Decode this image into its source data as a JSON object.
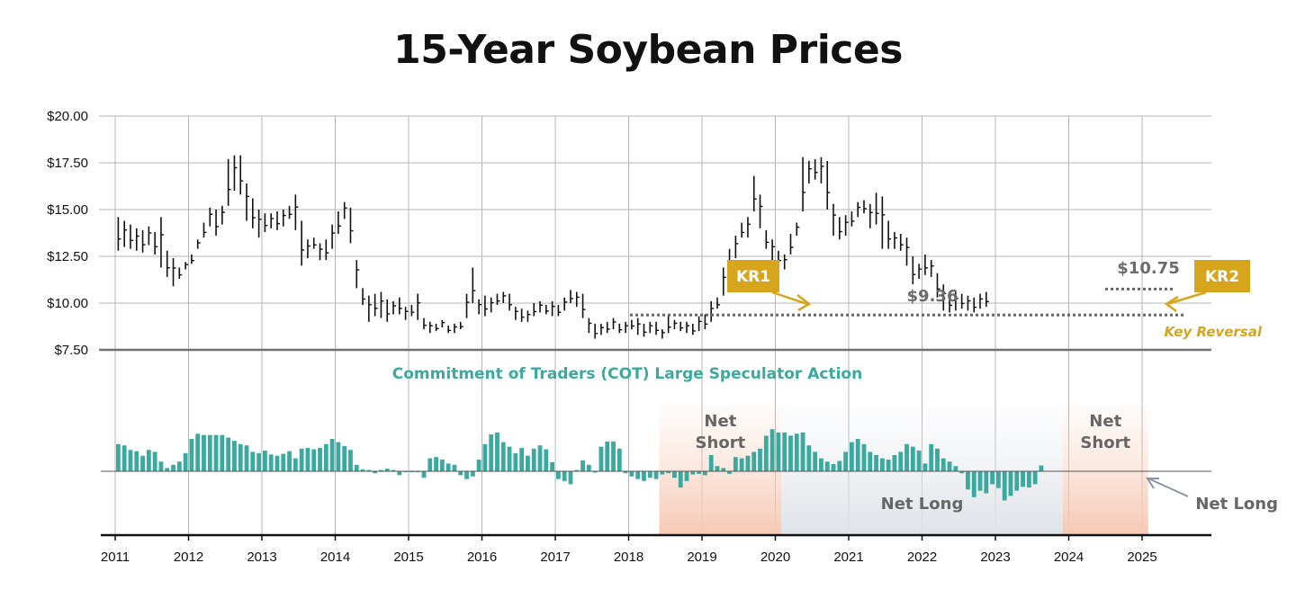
{
  "title": "15-Year Soybean Prices",
  "colors": {
    "bar": "#111111",
    "cot": "#3aa99f",
    "short_zone": "#f6c9b5",
    "long_zone": "#dfe3e8",
    "accent": "#d6a51c",
    "annotation": "#6b6b6b"
  },
  "chart_data": [
    {
      "type": "ohlc-bar",
      "title": "15-Year Soybean Prices",
      "grid": true,
      "x_range": [
        2011.0,
        2026.0
      ],
      "ylim": [
        7.5,
        20.0
      ],
      "yticks": [
        "$7.50",
        "$10.00",
        "$12.50",
        "$15.00",
        "$17.50",
        "$20.00"
      ],
      "yticks_values": [
        7.5,
        10,
        12.5,
        15,
        17.5,
        20
      ],
      "xticks": [
        "2011",
        "2012",
        "2013",
        "2014",
        "2015",
        "2016",
        "2017",
        "2018",
        "2019",
        "2020",
        "2021",
        "2022",
        "2023",
        "2024",
        "2025"
      ],
      "series": [
        {
          "interval": "monthly",
          "start": "2011-01",
          "high": [
            14.6,
            14.4,
            14.2,
            14.0,
            13.9,
            14.1,
            13.8,
            14.6,
            12.8,
            12.4,
            11.9,
            12.2,
            12.6,
            13.4,
            14.3,
            15.1,
            15.0,
            15.2,
            17.7,
            17.9,
            17.9,
            16.4,
            15.6,
            15.0,
            14.8,
            14.8,
            14.9,
            15.0,
            15.2,
            15.8,
            14.4,
            13.4,
            13.5,
            13.2,
            13.4,
            14.2,
            14.9,
            15.4,
            15.1,
            12.3,
            10.8,
            10.4,
            10.5,
            10.6,
            10.2,
            10.1,
            10.3,
            9.8,
            9.9,
            10.5,
            9.2,
            9.0,
            8.9,
            9.1,
            8.8,
            8.9,
            9.0,
            10.5,
            11.9,
            10.2,
            10.4,
            10.3,
            10.5,
            10.6,
            10.5,
            9.8,
            9.7,
            9.6,
            10.0,
            10.1,
            9.9,
            10.1,
            9.9,
            10.3,
            10.7,
            10.6,
            10.5,
            9.2,
            8.9,
            8.9,
            9.0,
            9.2,
            8.9,
            9.0,
            9.1,
            9.2,
            8.9,
            9.0,
            9.0,
            8.6,
            9.3,
            9.1,
            9.0,
            9.0,
            8.9,
            9.3,
            9.4,
            10.1,
            10.3,
            11.9,
            12.9,
            13.6,
            14.3,
            14.6,
            16.8,
            15.8,
            13.9,
            13.4,
            12.8,
            12.6,
            13.7,
            14.3,
            17.8,
            17.6,
            17.7,
            17.8,
            17.6,
            15.3,
            14.6,
            14.7,
            14.9,
            15.4,
            15.5,
            15.3,
            15.9,
            15.7,
            14.4,
            13.8,
            13.7,
            13.5,
            12.5,
            12.1,
            12.6,
            12.3,
            11.6,
            11.0,
            10.6,
            10.6,
            10.5,
            10.4,
            10.3,
            10.5,
            10.6
          ],
          "low": [
            12.8,
            13.0,
            12.9,
            12.8,
            12.7,
            13.1,
            12.6,
            11.9,
            11.4,
            10.9,
            11.3,
            11.8,
            12.1,
            12.9,
            13.5,
            14.1,
            13.6,
            14.2,
            15.2,
            16.0,
            15.8,
            14.4,
            14.0,
            13.5,
            13.8,
            14.0,
            13.9,
            14.1,
            14.5,
            13.9,
            12.0,
            12.4,
            12.9,
            12.3,
            12.3,
            12.9,
            13.7,
            14.5,
            13.2,
            10.8,
            9.9,
            9.0,
            9.3,
            9.2,
            9.0,
            9.4,
            9.4,
            9.1,
            9.3,
            9.1,
            8.6,
            8.4,
            8.5,
            8.7,
            8.4,
            8.4,
            8.6,
            9.2,
            10.0,
            9.4,
            9.3,
            9.5,
            9.9,
            10.0,
            9.6,
            9.1,
            9.0,
            9.0,
            9.3,
            9.5,
            9.4,
            9.3,
            9.3,
            9.6,
            10.0,
            9.8,
            9.2,
            8.4,
            8.1,
            8.3,
            8.4,
            8.6,
            8.4,
            8.4,
            8.6,
            8.3,
            8.2,
            8.4,
            8.3,
            8.1,
            8.4,
            8.6,
            8.5,
            8.4,
            8.3,
            8.5,
            8.6,
            9.0,
            9.7,
            10.4,
            11.8,
            12.4,
            13.5,
            13.5,
            14.9,
            14.0,
            12.9,
            12.3,
            12.0,
            11.8,
            12.6,
            13.6,
            14.9,
            16.4,
            16.6,
            16.4,
            15.0,
            13.6,
            13.4,
            13.6,
            14.1,
            14.6,
            14.8,
            14.0,
            14.2,
            12.9,
            12.9,
            12.9,
            12.8,
            12.0,
            11.0,
            11.3,
            11.5,
            11.4,
            10.3,
            9.6,
            9.5,
            9.6,
            9.7,
            9.6,
            9.5,
            9.7,
            9.8
          ]
        }
      ],
      "annotations": {
        "kr1_label": "KR1",
        "kr2_label": "KR2",
        "support_label": "$9.36",
        "support_value": 9.36,
        "resistance_label": "$10.75",
        "resistance_value": 10.75,
        "key_reversal_label": "Key Reversal"
      }
    },
    {
      "type": "bar",
      "title": "Commitment of Traders (COT) Large Speculator Action",
      "interval": "monthly",
      "start": "2011-01",
      "zero_line": true,
      "values": [
        42,
        40,
        33,
        31,
        24,
        33,
        30,
        15,
        5,
        10,
        15,
        28,
        50,
        58,
        56,
        56,
        56,
        56,
        52,
        47,
        42,
        40,
        30,
        28,
        32,
        26,
        24,
        27,
        31,
        20,
        35,
        36,
        34,
        36,
        42,
        50,
        45,
        39,
        33,
        10,
        3,
        2,
        -3,
        2,
        4,
        2,
        -6,
        -1,
        -1,
        -1,
        -10,
        20,
        22,
        18,
        12,
        10,
        -6,
        -12,
        -8,
        18,
        42,
        57,
        60,
        45,
        38,
        28,
        36,
        24,
        35,
        40,
        34,
        14,
        -12,
        -15,
        -20,
        2,
        17,
        10,
        -2,
        38,
        46,
        46,
        35,
        -3,
        -8,
        -12,
        -15,
        -10,
        -12,
        -5,
        -3,
        -10,
        -25,
        -15,
        -5,
        -4,
        -6,
        25,
        8,
        5,
        -4,
        22,
        20,
        24,
        30,
        35,
        55,
        65,
        60,
        60,
        55,
        58,
        60,
        40,
        30,
        20,
        15,
        11,
        16,
        30,
        45,
        50,
        42,
        30,
        25,
        20,
        18,
        25,
        30,
        42,
        38,
        32,
        12,
        42,
        35,
        20,
        15,
        8,
        -3,
        -28,
        -40,
        -30,
        -34,
        -20,
        -26,
        -45,
        -38,
        -30,
        -24,
        -25,
        -20,
        9
      ]
    }
  ],
  "panel2": {
    "title": "Commitment of Traders (COT) Large Speculator Action",
    "zones": [
      {
        "label_line1": "Net",
        "label_line2": "Short",
        "type": "short"
      },
      {
        "label": "Net Long",
        "type": "long"
      },
      {
        "label_line1": "Net",
        "label_line2": "Short",
        "type": "short"
      }
    ],
    "net_long_callout": "Net Long"
  }
}
